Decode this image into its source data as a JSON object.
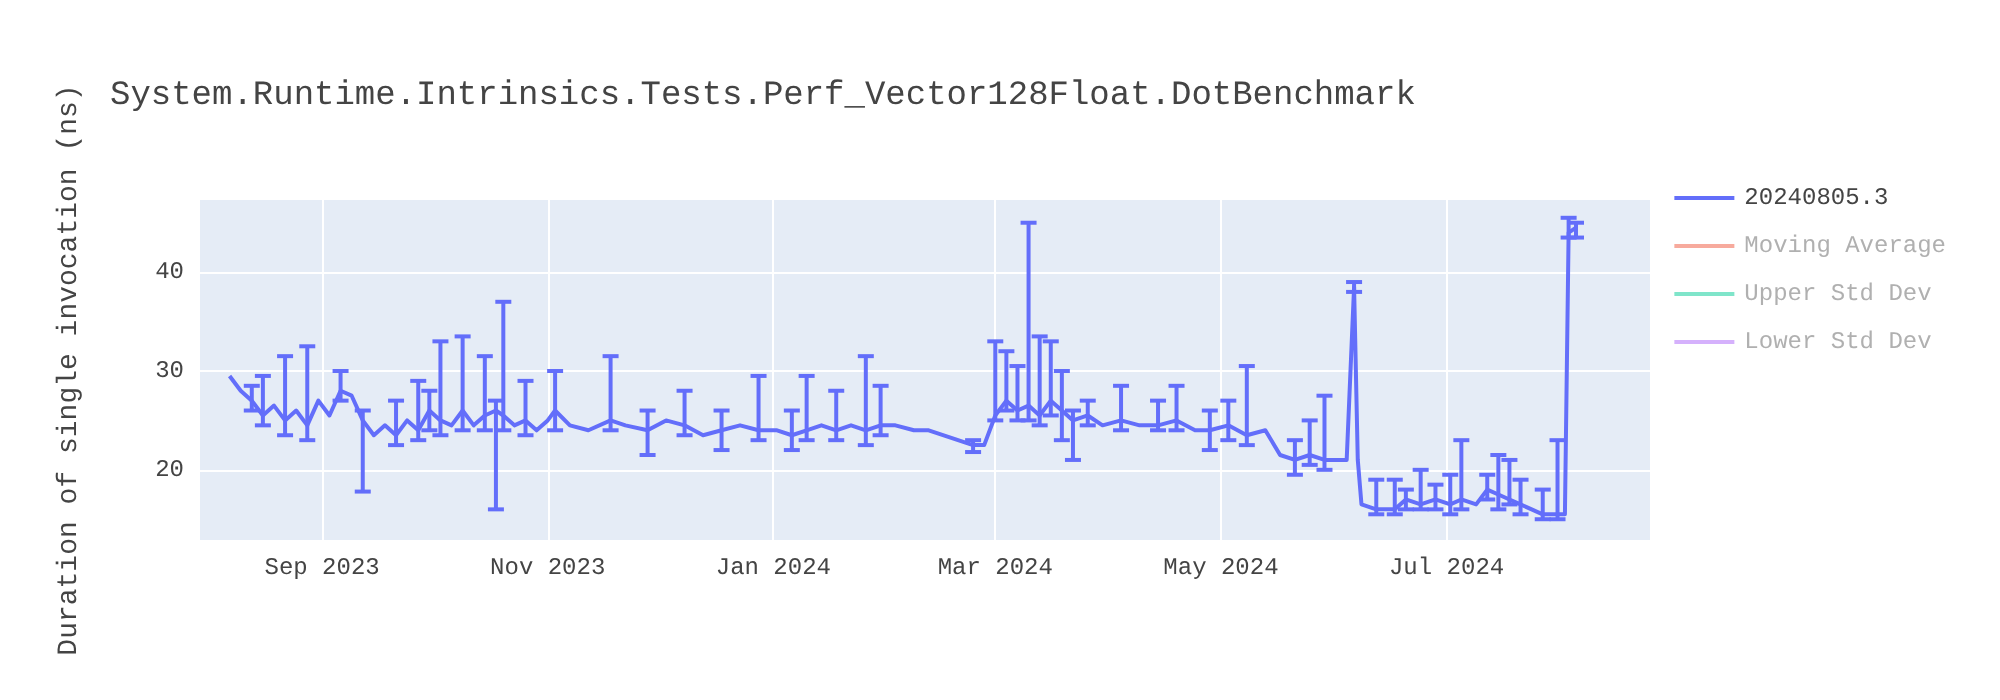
{
  "chart_data": {
    "type": "line",
    "title": "System.Runtime.Intrinsics.Tests.Perf_Vector128Float.DotBenchmark",
    "ylabel": "Duration of single invocation (ns)",
    "xlim": [
      "2023-07-30",
      "2024-08-25"
    ],
    "ylim": [
      12.9,
      47.3
    ],
    "xticks": [
      {
        "value": "2023-09-01",
        "label": "Sep 2023"
      },
      {
        "value": "2023-11-01",
        "label": "Nov 2023"
      },
      {
        "value": "2024-01-01",
        "label": "Jan 2024"
      },
      {
        "value": "2024-03-01",
        "label": "Mar 2024"
      },
      {
        "value": "2024-05-01",
        "label": "May 2024"
      },
      {
        "value": "2024-07-01",
        "label": "Jul 2024"
      }
    ],
    "yticks": [
      20,
      30,
      40
    ],
    "grid": true,
    "legend": "top right",
    "marker": "none",
    "line_style": "solid",
    "series": [
      {
        "name": "20240805.3",
        "color": "#636efa",
        "x": [
          "2023-08-07",
          "2023-08-10",
          "2023-08-13",
          "2023-08-16",
          "2023-08-19",
          "2023-08-22",
          "2023-08-25",
          "2023-08-28",
          "2023-08-31",
          "2023-09-03",
          "2023-09-06",
          "2023-09-09",
          "2023-09-12",
          "2023-09-15",
          "2023-09-18",
          "2023-09-21",
          "2023-09-24",
          "2023-09-27",
          "2023-09-30",
          "2023-10-03",
          "2023-10-06",
          "2023-10-09",
          "2023-10-12",
          "2023-10-15",
          "2023-10-18",
          "2023-10-20",
          "2023-10-23",
          "2023-10-26",
          "2023-10-29",
          "2023-11-01",
          "2023-11-03",
          "2023-11-07",
          "2023-11-12",
          "2023-11-18",
          "2023-11-22",
          "2023-11-28",
          "2023-12-03",
          "2023-12-08",
          "2023-12-13",
          "2023-12-18",
          "2023-12-23",
          "2023-12-28",
          "2024-01-02",
          "2024-01-06",
          "2024-01-10",
          "2024-01-14",
          "2024-01-18",
          "2024-01-22",
          "2024-01-26",
          "2024-01-30",
          "2024-02-03",
          "2024-02-08",
          "2024-02-12",
          "2024-02-24",
          "2024-02-27",
          "2024-03-01",
          "2024-03-04",
          "2024-03-07",
          "2024-03-10",
          "2024-03-13",
          "2024-03-16",
          "2024-03-19",
          "2024-03-22",
          "2024-03-26",
          "2024-03-30",
          "2024-04-04",
          "2024-04-09",
          "2024-04-14",
          "2024-04-19",
          "2024-04-24",
          "2024-04-28",
          "2024-05-03",
          "2024-05-08",
          "2024-05-13",
          "2024-05-17",
          "2024-05-21",
          "2024-05-25",
          "2024-05-29",
          "2024-06-02",
          "2024-06-04",
          "2024-06-06",
          "2024-06-07",
          "2024-06-08",
          "2024-06-12",
          "2024-06-17",
          "2024-06-20",
          "2024-06-24",
          "2024-06-28",
          "2024-07-02",
          "2024-07-05",
          "2024-07-09",
          "2024-07-12",
          "2024-07-15",
          "2024-07-18",
          "2024-07-21",
          "2024-07-24",
          "2024-07-27",
          "2024-07-31",
          "2024-08-02",
          "2024-08-03",
          "2024-08-05"
        ],
        "values": [
          29.5,
          28,
          27,
          25.5,
          26.5,
          25,
          26,
          24.5,
          27,
          25.5,
          28,
          27.5,
          25,
          23.5,
          24.5,
          23.5,
          25,
          24,
          26,
          25,
          24.5,
          26,
          24.5,
          25.5,
          26,
          25.5,
          24.5,
          25,
          24,
          25,
          26,
          24.5,
          24,
          25,
          24.5,
          24,
          25,
          24.5,
          23.5,
          24,
          24.5,
          24,
          24,
          23.5,
          24,
          24.5,
          24,
          24.5,
          24,
          24.5,
          24.5,
          24,
          24,
          22.5,
          22.5,
          25.5,
          27,
          26,
          26.5,
          25.5,
          27,
          26,
          25,
          25.5,
          24.5,
          25,
          24.5,
          24.5,
          25,
          24,
          24,
          24.5,
          23.5,
          24,
          21.5,
          21,
          21.5,
          21,
          21,
          21,
          38.5,
          21,
          16.5,
          16,
          16,
          17,
          16.5,
          17,
          16.5,
          17,
          16.5,
          18,
          17.5,
          17,
          16.5,
          16,
          15.5,
          15.5,
          15.5,
          44,
          44.5
        ],
        "errors": [
          null,
          null,
          [
            26,
            28.5
          ],
          [
            24.5,
            29.5
          ],
          null,
          [
            23.5,
            31.5
          ],
          null,
          [
            23,
            32.5
          ],
          null,
          null,
          [
            27,
            30
          ],
          null,
          [
            17.8,
            26
          ],
          null,
          null,
          [
            22.5,
            27
          ],
          null,
          [
            23,
            29
          ],
          [
            24,
            28
          ],
          [
            23.5,
            33
          ],
          null,
          [
            24,
            33.5
          ],
          null,
          [
            24,
            31.5
          ],
          [
            16,
            27
          ],
          [
            24,
            37
          ],
          null,
          [
            23.5,
            29
          ],
          null,
          null,
          [
            24,
            30
          ],
          null,
          null,
          [
            24,
            31.5
          ],
          null,
          [
            21.5,
            26
          ],
          null,
          [
            23.5,
            28
          ],
          null,
          [
            22,
            26
          ],
          null,
          [
            23,
            29.5
          ],
          null,
          [
            22,
            26
          ],
          [
            23,
            29.5
          ],
          null,
          [
            23,
            28
          ],
          null,
          [
            22.5,
            31.5
          ],
          [
            23.5,
            28.5
          ],
          null,
          null,
          null,
          [
            21.8,
            23
          ],
          null,
          [
            25,
            33
          ],
          [
            26,
            32
          ],
          [
            25,
            30.5
          ],
          [
            25,
            45
          ],
          [
            24.5,
            33.5
          ],
          [
            25.5,
            33
          ],
          [
            23,
            30
          ],
          [
            21,
            26
          ],
          [
            24.5,
            27
          ],
          null,
          [
            24,
            28.5
          ],
          null,
          [
            24,
            27
          ],
          [
            24,
            28.5
          ],
          null,
          [
            22,
            26
          ],
          [
            23,
            27
          ],
          [
            22.5,
            30.5
          ],
          null,
          null,
          [
            19.5,
            23
          ],
          [
            20.5,
            25
          ],
          [
            20,
            27.5
          ],
          null,
          null,
          [
            38,
            39
          ],
          null,
          null,
          [
            15.5,
            19
          ],
          [
            15.5,
            19
          ],
          [
            16,
            18
          ],
          [
            16,
            20
          ],
          [
            16,
            18.5
          ],
          [
            15.5,
            19.5
          ],
          [
            16,
            23
          ],
          null,
          [
            17,
            19.5
          ],
          [
            16,
            21.5
          ],
          [
            16.5,
            21
          ],
          [
            15.5,
            19
          ],
          null,
          [
            15,
            18
          ],
          [
            15,
            23
          ],
          null,
          [
            43.5,
            45.5
          ],
          [
            43.5,
            45
          ]
        ]
      },
      {
        "name": "Moving Average",
        "color": "#ef553b"
      },
      {
        "name": "Upper Std Dev",
        "color": "#00cc96"
      },
      {
        "name": "Lower Std Dev",
        "color": "#ab63fa"
      }
    ]
  }
}
